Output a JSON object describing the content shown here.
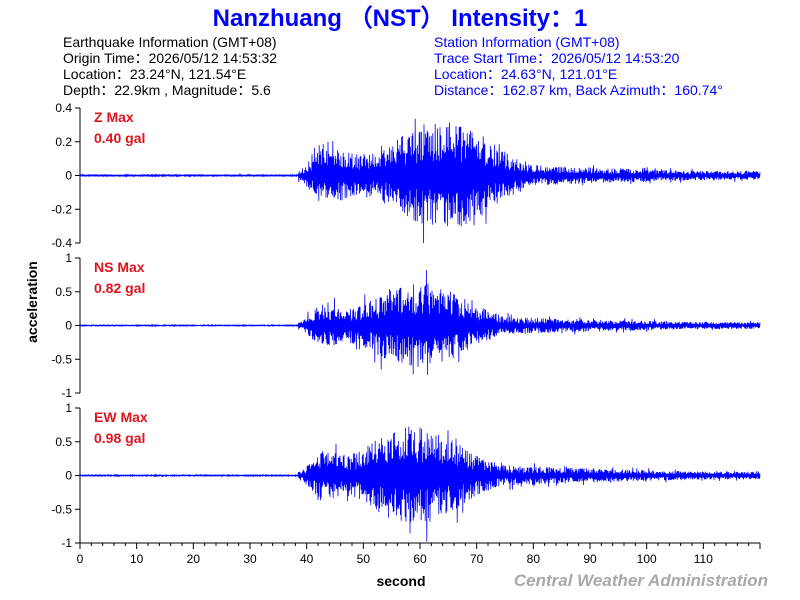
{
  "header": {
    "title": "Nanzhuang （NST） Intensity：1"
  },
  "earthquake_info": {
    "heading": "Earthquake Information  (GMT+08)",
    "origin_time": "Origin Time：2026/05/12 14:53:32",
    "location": "Location：23.24°N, 121.54°E",
    "depth_magnitude": "Depth：22.9km , Magnitude：5.6"
  },
  "station_info": {
    "heading": "Station Information  (GMT+08)",
    "trace_start": "Trace Start Time：2026/05/12 14:53:20",
    "location": "Location：24.63°N, 121.01°E",
    "distance": "Distance：162.87 km, Back Azimuth：160.74°"
  },
  "footer": {
    "credit": "Central Weather Administration"
  },
  "colors": {
    "title": "#0000ff",
    "trace": "#0000ff",
    "max_label": "#e0141e",
    "station_text": "#0000ff",
    "credit": "#a8a8a8"
  },
  "chart_data": {
    "type": "line",
    "xlabel": "second",
    "ylabel": "acceleration",
    "xlim": [
      0,
      120
    ],
    "x_ticks": [
      "0",
      "10",
      "20",
      "30",
      "40",
      "50",
      "60",
      "70",
      "80",
      "90",
      "100",
      "110"
    ],
    "panels": [
      {
        "component": "Z",
        "max_label": "Z Max",
        "max_value": "0.40 gal",
        "peak": 0.4,
        "ylim": [
          -0.4,
          0.4
        ],
        "y_ticks": [
          "0.4",
          "0.2",
          "0",
          "-0.2",
          "-0.4"
        ],
        "onset_s": 38.5,
        "peak_time_s": 64
      },
      {
        "component": "NS",
        "max_label": "NS Max",
        "max_value": "0.82 gal",
        "peak": 0.82,
        "ylim": [
          -1,
          1
        ],
        "y_ticks": [
          "1",
          "0.5",
          "0",
          "-0.5",
          "-1"
        ],
        "onset_s": 38.5,
        "peak_time_s": 60
      },
      {
        "component": "EW",
        "max_label": "EW Max",
        "max_value": "0.98 gal",
        "peak": 0.98,
        "ylim": [
          -1,
          1
        ],
        "y_ticks": [
          "1",
          "0.5",
          "0",
          "-0.5",
          "-1"
        ],
        "onset_s": 38.5,
        "peak_time_s": 59
      }
    ]
  }
}
